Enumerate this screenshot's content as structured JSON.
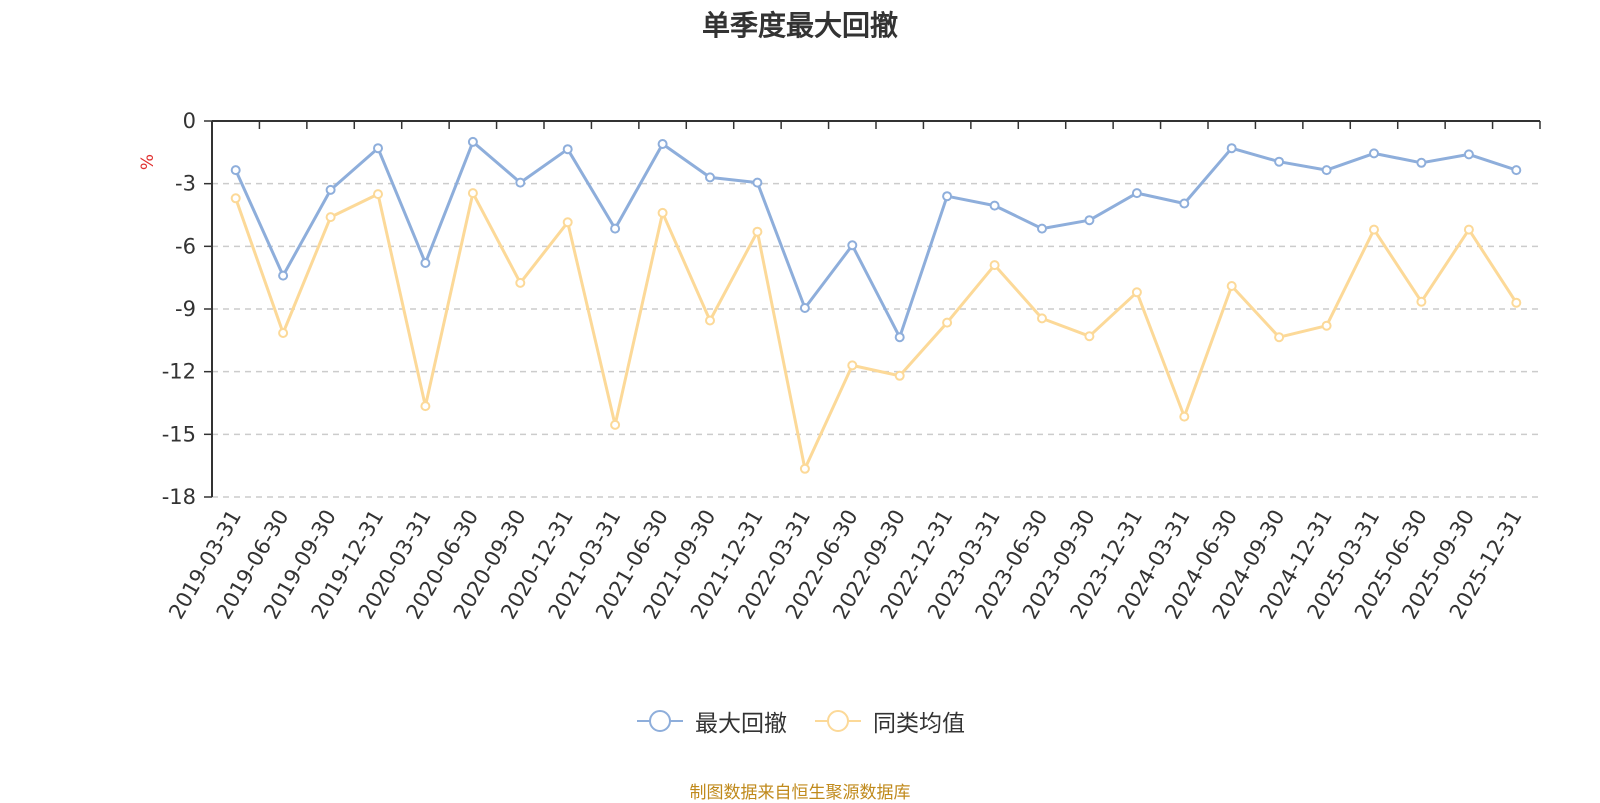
{
  "chart_data": {
    "type": "line",
    "title": "单季度最大回撤",
    "ylabel": "%",
    "ylim": [
      -18,
      0
    ],
    "yticks": [
      0,
      -3,
      -6,
      -9,
      -12,
      -15,
      -18
    ],
    "grid": true,
    "legend_position": "bottom",
    "categories": [
      "2019-03-31",
      "2019-06-30",
      "2019-09-30",
      "2019-12-31",
      "2020-03-31",
      "2020-06-30",
      "2020-09-30",
      "2020-12-31",
      "2021-03-31",
      "2021-06-30",
      "2021-09-30",
      "2021-12-31",
      "2022-03-31",
      "2022-06-30",
      "2022-09-30",
      "2022-12-31",
      "2023-03-31",
      "2023-06-30",
      "2023-09-30",
      "2023-12-31",
      "2024-03-31",
      "2024-06-30",
      "2024-09-30",
      "2024-12-31",
      "2025-03-31",
      "2025-06-30",
      "2025-09-30",
      "2025-12-31"
    ],
    "series": [
      {
        "name": "最大回撤",
        "color": "#8eaedb",
        "values": [
          -2.35,
          -7.4,
          -3.3,
          -1.3,
          -6.8,
          -1.0,
          -2.95,
          -1.35,
          -5.15,
          -1.1,
          -2.7,
          -2.95,
          -8.95,
          -5.95,
          -10.35,
          -3.6,
          -4.05,
          -5.15,
          -4.75,
          -3.45,
          -3.95,
          -1.3,
          -1.95,
          -2.35,
          -1.55,
          -2.0,
          -1.6,
          -2.35
        ]
      },
      {
        "name": "同类均值",
        "color": "#fcd998",
        "values": [
          -3.7,
          -10.15,
          -4.6,
          -3.5,
          -13.65,
          -3.45,
          -7.75,
          -4.85,
          -14.55,
          -4.4,
          -9.55,
          -5.3,
          -16.65,
          -11.7,
          -12.2,
          -9.65,
          -6.9,
          -9.45,
          -10.3,
          -8.2,
          -14.15,
          -7.9,
          -10.35,
          -9.8,
          -5.2,
          -8.65,
          -5.2,
          -8.7
        ]
      }
    ]
  },
  "source_text": "制图数据来自恒生聚源数据库"
}
